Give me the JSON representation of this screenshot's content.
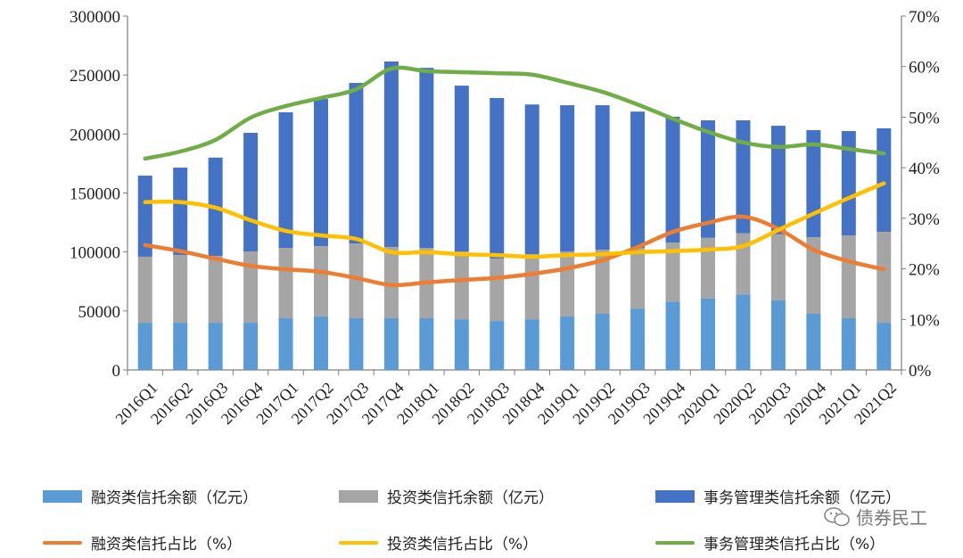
{
  "chart_data": {
    "type": "bar",
    "stacked": true,
    "categories": [
      "2016Q1",
      "2016Q2",
      "2016Q3",
      "2016Q4",
      "2017Q1",
      "2017Q2",
      "2017Q3",
      "2017Q4",
      "2018Q1",
      "2018Q2",
      "2018Q3",
      "2018Q4",
      "2019Q1",
      "2019Q2",
      "2019Q3",
      "2019Q4",
      "2020Q1",
      "2020Q2",
      "2020Q3",
      "2020Q4",
      "2021Q1",
      "2021Q2"
    ],
    "left_axis": {
      "ylim": [
        0,
        300000
      ],
      "ticks": [
        "0",
        "50000",
        "100000",
        "150000",
        "200000",
        "250000",
        "300000"
      ]
    },
    "right_axis": {
      "ylim": [
        0,
        70
      ],
      "ticks": [
        "0%",
        "10%",
        "20%",
        "30%",
        "40%",
        "50%",
        "60%",
        "70%"
      ]
    },
    "bar_series": [
      {
        "name": "融资类信托余额（亿元）",
        "color": "#5b9bd5",
        "values": [
          40000,
          40000,
          40000,
          40000,
          43800,
          45300,
          43800,
          43800,
          43800,
          43000,
          41500,
          43000,
          45300,
          47600,
          52000,
          58000,
          60500,
          64000,
          59000,
          47600,
          43800,
          40000
        ]
      },
      {
        "name": "投资类信托余额（亿元）",
        "color": "#a5a5a5",
        "values": [
          56000,
          57500,
          56700,
          60500,
          59700,
          59700,
          63500,
          60500,
          59700,
          57500,
          53000,
          55200,
          55200,
          54400,
          51500,
          50000,
          51500,
          52000,
          56000,
          64900,
          70200,
          77000
        ]
      },
      {
        "name": "事务管理类信托余额（亿元）",
        "color": "#4472c4",
        "values": [
          68700,
          74000,
          83300,
          100500,
          114900,
          124700,
          136000,
          157200,
          152600,
          140500,
          136000,
          126800,
          123900,
          122400,
          115500,
          106600,
          99600,
          95600,
          92000,
          90800,
          88500,
          87800
        ]
      }
    ],
    "line_series": [
      {
        "name": "融资类信托占比（%）",
        "color": "#ed7d31",
        "values": [
          24.7,
          23.5,
          22.0,
          20.6,
          19.9,
          19.4,
          18.2,
          16.8,
          17.3,
          17.8,
          18.2,
          19.0,
          20.1,
          21.7,
          24.3,
          27.3,
          29.1,
          30.3,
          27.9,
          23.8,
          21.5,
          19.9
        ]
      },
      {
        "name": "投资类信托占比（%）",
        "color": "#ffc000",
        "values": [
          33.2,
          33.2,
          32.1,
          29.6,
          27.5,
          26.6,
          25.9,
          23.3,
          23.3,
          22.9,
          22.7,
          22.4,
          22.7,
          22.9,
          23.3,
          23.5,
          23.8,
          24.5,
          27.7,
          30.9,
          34.0,
          36.9
        ]
      },
      {
        "name": "事务管理类信托占比（%）",
        "color": "#70ad47",
        "values": [
          41.8,
          43.2,
          45.5,
          49.9,
          52.2,
          53.8,
          55.5,
          59.6,
          59.1,
          58.9,
          58.7,
          58.4,
          56.8,
          55.0,
          52.5,
          49.7,
          47.1,
          45.0,
          44.1,
          44.6,
          43.7,
          42.8
        ]
      }
    ],
    "legend_position": "bottom",
    "grid": false
  },
  "watermark": {
    "text": "债券民工",
    "icon": "wechat-icon"
  }
}
